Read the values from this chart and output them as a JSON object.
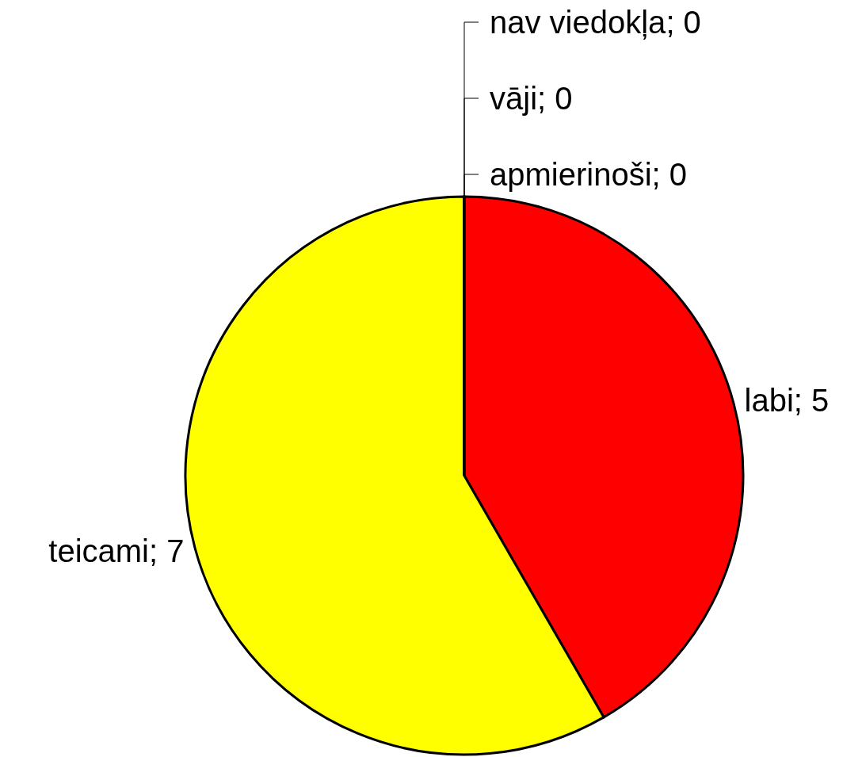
{
  "chart_data": {
    "type": "pie",
    "categories": [
      "labi",
      "teicami",
      "apmierinoši",
      "vāji",
      "nav viedokļa"
    ],
    "values": [
      5,
      7,
      0,
      0,
      0
    ],
    "colors": [
      "#ff0000",
      "#ffff00",
      "#00ff00",
      "#0000ff",
      "#ff00ff"
    ],
    "value_labels": [
      "; 5",
      "; 7",
      "; 0",
      "; 0",
      "; 0"
    ]
  }
}
